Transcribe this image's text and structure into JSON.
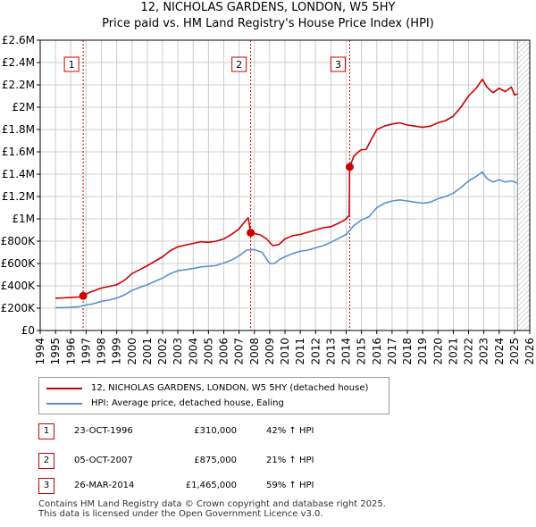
{
  "title": {
    "line1": "12, NICHOLAS GARDENS, LONDON, W5 5HY",
    "line2": "Price paid vs. HM Land Registry's House Price Index (HPI)"
  },
  "colors": {
    "property": "#cc0000",
    "hpi": "#5b8fd0",
    "grid": "#cccccc",
    "sale_marker": "#cc0000"
  },
  "chart_data": {
    "type": "line",
    "xlim": [
      1994,
      2026
    ],
    "ylim": [
      0,
      2600000
    ],
    "x_ticks": [
      "1994",
      "1995",
      "1996",
      "1997",
      "1998",
      "1999",
      "2000",
      "2001",
      "2002",
      "2003",
      "2004",
      "2005",
      "2006",
      "2007",
      "2008",
      "2009",
      "2010",
      "2011",
      "2012",
      "2013",
      "2014",
      "2015",
      "2016",
      "2017",
      "2018",
      "2019",
      "2020",
      "2021",
      "2022",
      "2023",
      "2024",
      "2025",
      "2026"
    ],
    "y_ticks": [
      {
        "value": 0,
        "label": "£0"
      },
      {
        "value": 200000,
        "label": "£200K"
      },
      {
        "value": 400000,
        "label": "£400K"
      },
      {
        "value": 600000,
        "label": "£600K"
      },
      {
        "value": 800000,
        "label": "£800K"
      },
      {
        "value": 1000000,
        "label": "£1M"
      },
      {
        "value": 1200000,
        "label": "£1.2M"
      },
      {
        "value": 1400000,
        "label": "£1.4M"
      },
      {
        "value": 1600000,
        "label": "£1.6M"
      },
      {
        "value": 1800000,
        "label": "£1.8M"
      },
      {
        "value": 2000000,
        "label": "£2M"
      },
      {
        "value": 2200000,
        "label": "£2.2M"
      },
      {
        "value": 2400000,
        "label": "£2.4M"
      },
      {
        "value": 2600000,
        "label": "£2.6M"
      }
    ],
    "series": [
      {
        "name": "12, NICHOLAS GARDENS, LONDON, W5 5HY (detached house)",
        "color": "#cc0000",
        "points": [
          [
            1995.0,
            290000
          ],
          [
            1995.5,
            292000
          ],
          [
            1996.0,
            295000
          ],
          [
            1996.5,
            300000
          ],
          [
            1996.81,
            310000
          ],
          [
            1997.2,
            340000
          ],
          [
            1997.6,
            360000
          ],
          [
            1998.0,
            380000
          ],
          [
            1998.5,
            395000
          ],
          [
            1999.0,
            410000
          ],
          [
            1999.5,
            450000
          ],
          [
            2000.0,
            510000
          ],
          [
            2000.5,
            545000
          ],
          [
            2001.0,
            580000
          ],
          [
            2001.5,
            620000
          ],
          [
            2002.0,
            660000
          ],
          [
            2002.5,
            715000
          ],
          [
            2003.0,
            750000
          ],
          [
            2003.5,
            765000
          ],
          [
            2004.0,
            780000
          ],
          [
            2004.5,
            795000
          ],
          [
            2005.0,
            790000
          ],
          [
            2005.5,
            800000
          ],
          [
            2006.0,
            820000
          ],
          [
            2006.5,
            860000
          ],
          [
            2007.0,
            910000
          ],
          [
            2007.4,
            980000
          ],
          [
            2007.6,
            1010000
          ],
          [
            2007.76,
            875000
          ],
          [
            2008.0,
            870000
          ],
          [
            2008.4,
            855000
          ],
          [
            2008.8,
            820000
          ],
          [
            2009.2,
            760000
          ],
          [
            2009.6,
            770000
          ],
          [
            2010.0,
            820000
          ],
          [
            2010.5,
            850000
          ],
          [
            2011.0,
            860000
          ],
          [
            2011.5,
            880000
          ],
          [
            2012.0,
            900000
          ],
          [
            2012.5,
            920000
          ],
          [
            2013.0,
            930000
          ],
          [
            2013.5,
            960000
          ],
          [
            2013.9,
            990000
          ],
          [
            2014.2,
            1030000
          ],
          [
            2014.23,
            1465000
          ],
          [
            2014.5,
            1560000
          ],
          [
            2014.8,
            1600000
          ],
          [
            2015.0,
            1620000
          ],
          [
            2015.3,
            1620000
          ],
          [
            2015.6,
            1700000
          ],
          [
            2016.0,
            1800000
          ],
          [
            2016.5,
            1830000
          ],
          [
            2017.0,
            1850000
          ],
          [
            2017.5,
            1860000
          ],
          [
            2018.0,
            1840000
          ],
          [
            2018.5,
            1830000
          ],
          [
            2019.0,
            1820000
          ],
          [
            2019.5,
            1830000
          ],
          [
            2020.0,
            1860000
          ],
          [
            2020.5,
            1880000
          ],
          [
            2021.0,
            1920000
          ],
          [
            2021.5,
            2000000
          ],
          [
            2022.0,
            2100000
          ],
          [
            2022.5,
            2170000
          ],
          [
            2022.9,
            2250000
          ],
          [
            2023.2,
            2180000
          ],
          [
            2023.6,
            2130000
          ],
          [
            2024.0,
            2170000
          ],
          [
            2024.4,
            2140000
          ],
          [
            2024.8,
            2180000
          ],
          [
            2025.0,
            2110000
          ],
          [
            2025.2,
            2120000
          ]
        ]
      },
      {
        "name": "HPI: Average price, detached house, Ealing",
        "color": "#5b8fd0",
        "points": [
          [
            1995.0,
            205000
          ],
          [
            1995.5,
            205000
          ],
          [
            1996.0,
            208000
          ],
          [
            1996.5,
            212000
          ],
          [
            1997.0,
            228000
          ],
          [
            1997.5,
            240000
          ],
          [
            1998.0,
            262000
          ],
          [
            1998.5,
            272000
          ],
          [
            1999.0,
            290000
          ],
          [
            1999.5,
            318000
          ],
          [
            2000.0,
            360000
          ],
          [
            2000.5,
            385000
          ],
          [
            2001.0,
            410000
          ],
          [
            2001.5,
            440000
          ],
          [
            2002.0,
            470000
          ],
          [
            2002.5,
            510000
          ],
          [
            2003.0,
            535000
          ],
          [
            2003.5,
            545000
          ],
          [
            2004.0,
            555000
          ],
          [
            2004.5,
            570000
          ],
          [
            2005.0,
            575000
          ],
          [
            2005.5,
            582000
          ],
          [
            2006.0,
            605000
          ],
          [
            2006.5,
            630000
          ],
          [
            2007.0,
            670000
          ],
          [
            2007.5,
            720000
          ],
          [
            2008.0,
            725000
          ],
          [
            2008.5,
            700000
          ],
          [
            2009.0,
            600000
          ],
          [
            2009.3,
            600000
          ],
          [
            2009.7,
            640000
          ],
          [
            2010.0,
            660000
          ],
          [
            2010.5,
            690000
          ],
          [
            2011.0,
            710000
          ],
          [
            2011.5,
            720000
          ],
          [
            2012.0,
            740000
          ],
          [
            2012.5,
            760000
          ],
          [
            2013.0,
            790000
          ],
          [
            2013.5,
            825000
          ],
          [
            2014.0,
            860000
          ],
          [
            2014.5,
            940000
          ],
          [
            2015.0,
            990000
          ],
          [
            2015.5,
            1020000
          ],
          [
            2016.0,
            1100000
          ],
          [
            2016.5,
            1140000
          ],
          [
            2017.0,
            1160000
          ],
          [
            2017.5,
            1170000
          ],
          [
            2018.0,
            1160000
          ],
          [
            2018.5,
            1150000
          ],
          [
            2019.0,
            1140000
          ],
          [
            2019.5,
            1150000
          ],
          [
            2020.0,
            1180000
          ],
          [
            2020.5,
            1200000
          ],
          [
            2021.0,
            1230000
          ],
          [
            2021.5,
            1280000
          ],
          [
            2022.0,
            1340000
          ],
          [
            2022.5,
            1380000
          ],
          [
            2022.9,
            1420000
          ],
          [
            2023.2,
            1360000
          ],
          [
            2023.6,
            1330000
          ],
          [
            2024.0,
            1350000
          ],
          [
            2024.4,
            1330000
          ],
          [
            2024.8,
            1340000
          ],
          [
            2025.0,
            1330000
          ],
          [
            2025.2,
            1320000
          ]
        ]
      }
    ],
    "sales": [
      {
        "num": "1",
        "x": 1996.81,
        "y": 310000
      },
      {
        "num": "2",
        "x": 2007.76,
        "y": 875000
      },
      {
        "num": "3",
        "x": 2014.23,
        "y": 1465000
      }
    ],
    "hatch_start": 2025.2
  },
  "legend": {
    "property_label": "12, NICHOLAS GARDENS, LONDON, W5 5HY (detached house)",
    "hpi_label": "HPI: Average price, detached house, Ealing"
  },
  "transactions": [
    {
      "num": "1",
      "date": "23-OCT-1996",
      "price": "£310,000",
      "hpi": "42% ↑ HPI"
    },
    {
      "num": "2",
      "date": "05-OCT-2007",
      "price": "£875,000",
      "hpi": "21% ↑ HPI"
    },
    {
      "num": "3",
      "date": "26-MAR-2014",
      "price": "£1,465,000",
      "hpi": "59% ↑ HPI"
    }
  ],
  "footer": {
    "line1": "Contains HM Land Registry data © Crown copyright and database right 2025.",
    "line2": "This data is licensed under the Open Government Licence v3.0."
  }
}
